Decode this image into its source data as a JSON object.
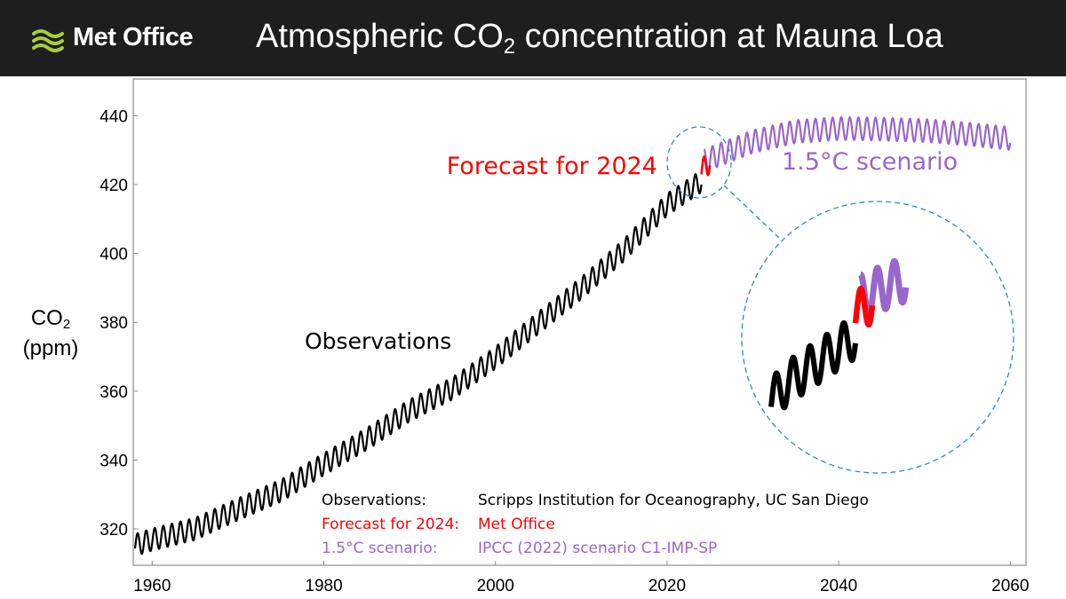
{
  "header": {
    "brand": "Met Office",
    "title_prefix": "Atmospheric CO",
    "title_sub": "2",
    "title_suffix": " concentration at Mauna Loa"
  },
  "colors": {
    "header_bg": "#1e1e1e",
    "brand_green": "#a6ce39",
    "observations": "#000000",
    "forecast": "#ff0000",
    "scenario": "#9966cc",
    "zoom_circle": "#2e8bc9"
  },
  "chart_data": {
    "type": "line",
    "title": "Atmospheric CO2 concentration at Mauna Loa",
    "xlabel": "",
    "ylabel": {
      "prefix": "CO",
      "sub": "2",
      "unit": "(ppm)"
    },
    "xlim": [
      1957,
      2061
    ],
    "ylim": [
      312,
      450
    ],
    "x_ticks": [
      "1960",
      "1980",
      "2000",
      "2020",
      "2040",
      "2060"
    ],
    "y_ticks": [
      "320",
      "340",
      "360",
      "380",
      "400",
      "420",
      "440"
    ],
    "series": [
      {
        "name": "Observations",
        "color": "#000000",
        "seasonal_amplitude_ppm": 3.2,
        "x": [
          1958,
          1960,
          1965,
          1970,
          1975,
          1980,
          1985,
          1990,
          1995,
          2000,
          2005,
          2010,
          2015,
          2020,
          2024
        ],
        "y": [
          315.3,
          316.9,
          320.0,
          325.7,
          331.1,
          338.8,
          346.1,
          354.4,
          360.8,
          369.7,
          379.8,
          389.9,
          401.0,
          414.2,
          421.0
        ]
      },
      {
        "name": "Forecast for 2024",
        "color": "#ff0000",
        "seasonal_amplitude_ppm": 3.3,
        "x": [
          2024,
          2025
        ],
        "y": [
          424.0,
          426.6
        ]
      },
      {
        "name": "1.5°C scenario",
        "color": "#9966cc",
        "seasonal_amplitude_ppm": 3.3,
        "x": [
          2024.3,
          2030,
          2035,
          2040,
          2045,
          2050,
          2055,
          2060
        ],
        "y": [
          426.9,
          432.5,
          435.4,
          436.3,
          436.1,
          435.7,
          434.7,
          433.4
        ]
      }
    ],
    "annotations": {
      "observations": "Observations",
      "forecast": "Forecast for 2024",
      "scenario": "1.5°C scenario"
    },
    "inset": {
      "description_x_range": [
        2019,
        2027
      ],
      "observations": {
        "x": [
          2019,
          2024
        ],
        "y": [
          408,
          421
        ]
      },
      "forecast": {
        "x": [
          2024,
          2025
        ],
        "y": [
          424,
          426.6
        ]
      },
      "scenario": {
        "x": [
          2024.3,
          2027
        ],
        "y": [
          426.9,
          430.5
        ]
      }
    },
    "sources": [
      {
        "label": "Observations:",
        "value": "Scripps Institution for Oceanography, UC San Diego",
        "color": "#000000"
      },
      {
        "label": "Forecast for 2024:",
        "value": "Met Office",
        "color": "#ff0000"
      },
      {
        "label": "1.5°C scenario:",
        "value": "IPCC (2022) scenario C1-IMP-SP",
        "color": "#9966cc"
      }
    ]
  }
}
